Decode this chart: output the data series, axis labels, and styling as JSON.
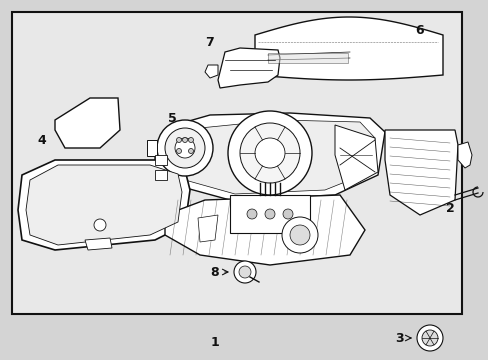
{
  "bg_color": "#d4d4d4",
  "box_facecolor": "#e8e8e8",
  "line_color": "#111111",
  "fig_width": 4.89,
  "fig_height": 3.6,
  "dpi": 100
}
